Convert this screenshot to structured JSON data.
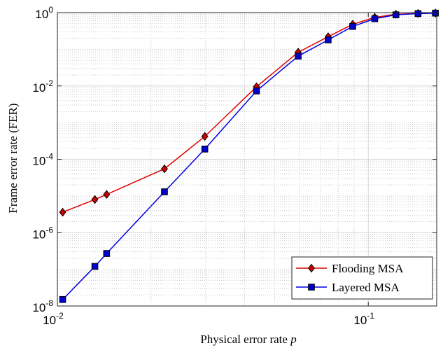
{
  "chart_data": {
    "type": "line",
    "xlabel_main": "Physical error rate ",
    "xlabel_var": "p",
    "ylabel": "Frame error rate (FER)",
    "x_scale": "log",
    "y_scale": "log",
    "xlim": [
      0.01,
      0.166
    ],
    "ylim": [
      1e-08,
      1
    ],
    "grid": "on (major and minor, dotted minor)",
    "legend_position": "bottom-right",
    "x_ticks": [
      {
        "value": 0.01,
        "base": "10",
        "exp": "-2"
      },
      {
        "value": 0.1,
        "base": "10",
        "exp": "-1"
      }
    ],
    "y_ticks": [
      {
        "value": 1,
        "base": "10",
        "exp": "0"
      },
      {
        "value": 0.01,
        "base": "10",
        "exp": "-2"
      },
      {
        "value": 0.0001,
        "base": "10",
        "exp": "-4"
      },
      {
        "value": 1e-06,
        "base": "10",
        "exp": "-6"
      },
      {
        "value": 1e-08,
        "base": "10",
        "exp": "-8"
      }
    ],
    "series": [
      {
        "name": "Flooding MSA",
        "color": "#e00000",
        "marker": "diamond",
        "marker_fill": "#cc0000",
        "x": [
          0.0104,
          0.0132,
          0.0144,
          0.0221,
          0.0298,
          0.0437,
          0.0595,
          0.0743,
          0.0891,
          0.1049,
          0.1227,
          0.1446,
          0.1644
        ],
        "y": [
          3.6e-06,
          8e-06,
          1.1e-05,
          5.5e-05,
          0.00042,
          0.0095,
          0.083,
          0.22,
          0.48,
          0.74,
          0.9,
          0.95,
          0.97
        ]
      },
      {
        "name": "Layered MSA",
        "color": "#0000e0",
        "marker": "square",
        "marker_fill": "#0000c8",
        "x": [
          0.0104,
          0.0132,
          0.0144,
          0.0221,
          0.0298,
          0.0437,
          0.0595,
          0.0743,
          0.0891,
          0.1049,
          0.1227,
          0.1446,
          0.1644
        ],
        "y": [
          1.5e-08,
          1.2e-07,
          2.7e-07,
          1.3e-05,
          0.00019,
          0.0073,
          0.065,
          0.18,
          0.42,
          0.68,
          0.87,
          0.94,
          0.97
        ]
      }
    ]
  }
}
